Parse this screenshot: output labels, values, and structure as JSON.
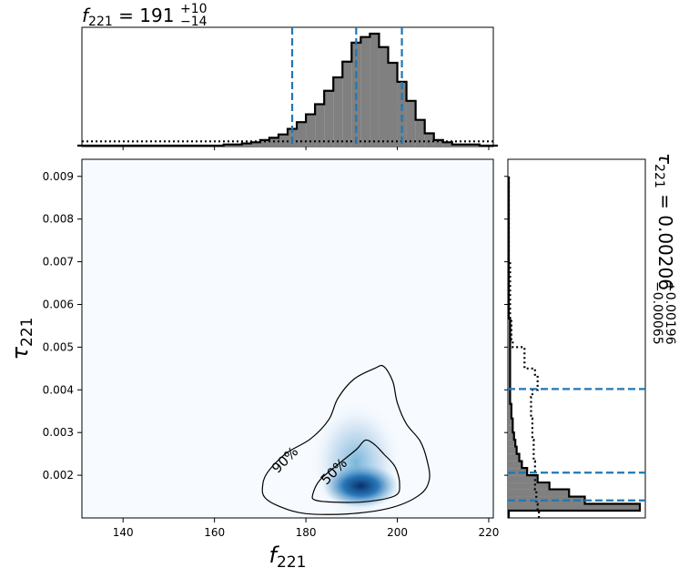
{
  "chart_data": {
    "type": "corner",
    "colors": {
      "marginal_fill": "#808080",
      "marginal_edge": "#000000",
      "quantile_line": "#1f77b4",
      "density_low": "#f7fbff",
      "density_high": "#08306b"
    },
    "top_marginal": {
      "title_main": "f",
      "title_sub": "221",
      "title_value": " = 191",
      "title_upper": "+10",
      "title_lower": "−14",
      "bin_edges": [
        130,
        132,
        134,
        136,
        138,
        140,
        142,
        144,
        146,
        148,
        150,
        152,
        154,
        156,
        158,
        160,
        162,
        164,
        166,
        168,
        170,
        172,
        174,
        176,
        178,
        180,
        182,
        184,
        186,
        188,
        190,
        192,
        194,
        196,
        198,
        200,
        202,
        204,
        206,
        208,
        210,
        212,
        214,
        216,
        218,
        220,
        222
      ],
      "counts": [
        0,
        0,
        0,
        0,
        0,
        0,
        0,
        0,
        0,
        0,
        0,
        0,
        0,
        0,
        0,
        0,
        0.01,
        0.01,
        0.02,
        0.03,
        0.05,
        0.07,
        0.1,
        0.15,
        0.21,
        0.28,
        0.37,
        0.49,
        0.61,
        0.75,
        0.92,
        0.97,
        1.0,
        0.88,
        0.74,
        0.57,
        0.4,
        0.23,
        0.11,
        0.05,
        0.03,
        0.01,
        0.01,
        0.01,
        0,
        0
      ],
      "prior_level": 0.03,
      "quantiles": [
        177,
        191,
        201
      ]
    },
    "right_marginal": {
      "label_main": "τ",
      "label_sub": "221",
      "label_value": " = 0.00206",
      "label_upper": "+0.00196",
      "label_lower": "−0.00065",
      "bin_edges": [
        0.001,
        0.00117,
        0.00133,
        0.0015,
        0.00167,
        0.00183,
        0.002,
        0.00217,
        0.00233,
        0.0025,
        0.00267,
        0.00283,
        0.003,
        0.00317,
        0.00333,
        0.0035,
        0.00367,
        0.00383,
        0.004,
        0.00417,
        0.00433,
        0.0045,
        0.00467,
        0.00483,
        0.005,
        0.00517,
        0.00533,
        0.0055,
        0.00567,
        0.00583,
        0.006,
        0.00617,
        0.00633,
        0.0065,
        0.00667,
        0.00683,
        0.007,
        0.00717,
        0.00733,
        0.0075,
        0.00767,
        0.00783,
        0.008,
        0.00817,
        0.00833,
        0.0085,
        0.00867,
        0.00883,
        0.009
      ],
      "counts": [
        0,
        1.0,
        0.58,
        0.46,
        0.31,
        0.22,
        0.14,
        0.1,
        0.08,
        0.06,
        0.05,
        0.04,
        0.03,
        0.03,
        0.02,
        0.02,
        0.01,
        0.01,
        0.01,
        0.01,
        0.01,
        0.01,
        0.01,
        0.01,
        0.01,
        0.01,
        0.01,
        0.01,
        0,
        0,
        0,
        0,
        0,
        0,
        0,
        0,
        0,
        0,
        0,
        0,
        0,
        0,
        0,
        0,
        0,
        0,
        0,
        0
      ],
      "prior_counts": [
        0.23,
        0.22,
        0.21,
        0.21,
        0.2,
        0.2,
        0.2,
        0.2,
        0.19,
        0.19,
        0.19,
        0.18,
        0.18,
        0.18,
        0.17,
        0.17,
        0.17,
        0.18,
        0.22,
        0.22,
        0.2,
        0.12,
        0.12,
        0.12,
        0.03,
        0.02,
        0.02,
        0.02,
        0.01,
        0.01,
        0.01,
        0.01,
        0.01,
        0.01,
        0.01,
        0.01,
        0,
        0,
        0,
        0,
        0,
        0,
        0,
        0,
        0,
        0,
        0,
        0
      ],
      "quantiles": [
        0.00141,
        0.00206,
        0.00402
      ]
    },
    "main": {
      "x_label_main": "f",
      "x_label_sub": "221",
      "y_label_main": "τ",
      "y_label_sub": "221",
      "xlim": [
        131,
        221
      ],
      "ylim": [
        0.001,
        0.0094
      ],
      "xticks": [
        140,
        160,
        180,
        200,
        220
      ],
      "xtick_labels": [
        "140",
        "160",
        "180",
        "200",
        "220"
      ],
      "yticks": [
        0.002,
        0.003,
        0.004,
        0.005,
        0.006,
        0.007,
        0.008,
        0.009
      ],
      "ytick_labels": [
        "0.002",
        "0.003",
        "0.004",
        "0.005",
        "0.006",
        "0.007",
        "0.008",
        "0.009"
      ],
      "peak": {
        "x": 192,
        "y": 0.00175
      },
      "contours": [
        {
          "label": "90%",
          "label_at": [
            175.5,
            0.00235
          ],
          "label_rotation": -45,
          "points": [
            [
              170.5,
              0.00172
            ],
            [
              171.5,
              0.00205
            ],
            [
              175.5,
              0.0025
            ],
            [
              181,
              0.00285
            ],
            [
              185,
              0.0033
            ],
            [
              187,
              0.0038
            ],
            [
              190.5,
              0.00425
            ],
            [
              195,
              0.0045
            ],
            [
              197,
              0.00455
            ],
            [
              199,
              0.0042
            ],
            [
              200,
              0.0037
            ],
            [
              202,
              0.0032
            ],
            [
              205,
              0.0028
            ],
            [
              206.5,
              0.00235
            ],
            [
              207,
              0.0019
            ],
            [
              205,
              0.00155
            ],
            [
              199,
              0.00125
            ],
            [
              190,
              0.0011
            ],
            [
              180,
              0.0011
            ],
            [
              174,
              0.00128
            ],
            [
              171,
              0.00148
            ]
          ]
        },
        {
          "label": "50%",
          "label_at": [
            186.2,
            0.00208
          ],
          "label_rotation": -45,
          "points": [
            [
              181.5,
              0.00155
            ],
            [
              183,
              0.00188
            ],
            [
              187,
              0.00225
            ],
            [
              191,
              0.0026
            ],
            [
              193,
              0.00282
            ],
            [
              195,
              0.00272
            ],
            [
              197,
              0.0025
            ],
            [
              199.5,
              0.0022
            ],
            [
              200.5,
              0.0018
            ],
            [
              199.5,
              0.00152
            ],
            [
              193,
              0.00138
            ],
            [
              186,
              0.00137
            ],
            [
              182,
              0.00142
            ]
          ]
        }
      ]
    }
  }
}
